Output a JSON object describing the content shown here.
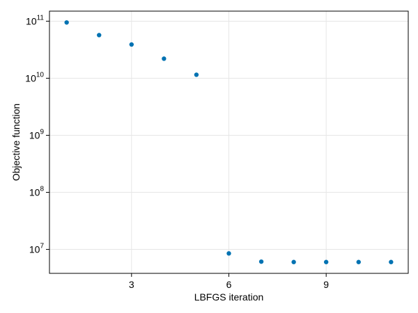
{
  "chart_data": {
    "type": "scatter",
    "title": "",
    "xlabel": "LBFGS iteration",
    "ylabel": "Objective function",
    "x": [
      1,
      2,
      3,
      4,
      5,
      6,
      7,
      8,
      9,
      10,
      11
    ],
    "y": [
      95000000000,
      57000000000,
      39000000000,
      22000000000,
      11500000000,
      8500000,
      6100000,
      6000000,
      6000000,
      6000000,
      6000000
    ],
    "xlim": [
      0.47,
      11.53
    ],
    "ylim": [
      3800000,
      150000000000
    ],
    "yscale": "log",
    "xticks": [
      3,
      6,
      9
    ],
    "xtick_labels": [
      "3",
      "6",
      "9"
    ],
    "yticks": [
      10000000,
      100000000,
      1000000000,
      10000000000,
      100000000000
    ],
    "ytick_labels": [
      {
        "base": "10",
        "exp": "7"
      },
      {
        "base": "10",
        "exp": "8"
      },
      {
        "base": "10",
        "exp": "9"
      },
      {
        "base": "10",
        "exp": "10"
      },
      {
        "base": "10",
        "exp": "11"
      }
    ],
    "grid": true,
    "marker_color": "#0072b2"
  }
}
